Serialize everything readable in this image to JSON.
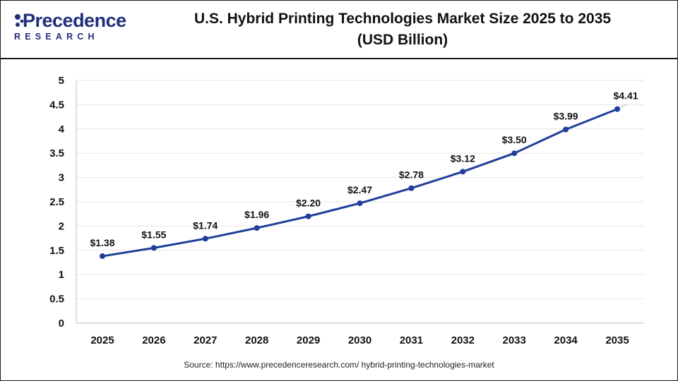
{
  "brand": {
    "name": "Precedence",
    "sub": "RESEARCH"
  },
  "title_line1": "U.S. Hybrid Printing Technologies Market Size 2025 to 2035",
  "title_line2": "(USD Billion)",
  "source": "Source: https://www.precedenceresearch.com/ hybrid-printing-technologies-market",
  "colors": {
    "line": "#1f3f9a",
    "grid": "#e6e6e6",
    "brand": "#1f2f7a"
  },
  "chart_data": {
    "type": "line",
    "title": "U.S. Hybrid Printing Technologies Market Size 2025 to 2035 (USD Billion)",
    "xlabel": "",
    "ylabel": "",
    "ylim": [
      0,
      5
    ],
    "yticks": [
      "0",
      "0.5",
      "1",
      "1.5",
      "2",
      "2.5",
      "3",
      "3.5",
      "4",
      "4.5",
      "5"
    ],
    "grid": true,
    "legend": "none",
    "categories": [
      "2025",
      "2026",
      "2027",
      "2028",
      "2029",
      "2030",
      "2031",
      "2032",
      "2033",
      "2034",
      "2035"
    ],
    "values": [
      1.38,
      1.55,
      1.74,
      1.96,
      2.2,
      2.47,
      2.78,
      3.12,
      3.5,
      3.99,
      4.41
    ],
    "data_labels": [
      "$1.38",
      "$1.55",
      "$1.74",
      "$1.96",
      "$2.20",
      "$2.47",
      "$2.78",
      "$3.12",
      "$3.50",
      "$3.99",
      "$4.41"
    ]
  }
}
